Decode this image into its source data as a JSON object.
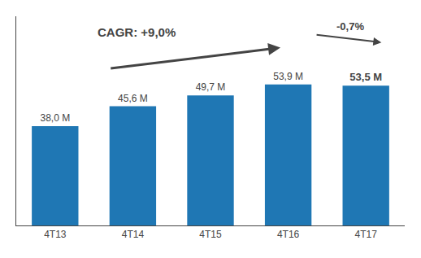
{
  "chart_data": {
    "type": "bar",
    "categories": [
      "4T13",
      "4T14",
      "4T15",
      "4T16",
      "4T17"
    ],
    "values": [
      38.0,
      45.6,
      49.7,
      53.9,
      53.5
    ],
    "value_labels": [
      "38,0 M",
      "45,6 M",
      "49,7 M",
      "53,9 M",
      "53,5 M"
    ],
    "data_labels": true,
    "annotations": [
      "CAGR: +9,0%",
      "-0,7%"
    ],
    "ylim": [
      0,
      80
    ],
    "tick_labels": "x",
    "grid": false
  }
}
